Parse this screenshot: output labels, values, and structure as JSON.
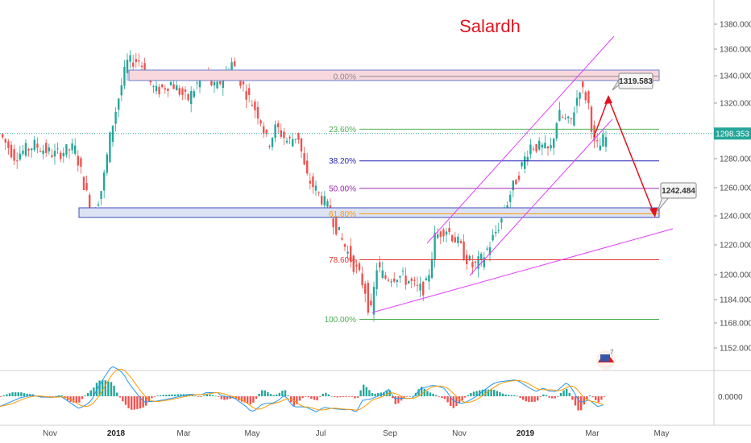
{
  "chart_data": {
    "type": "candlestick",
    "title": "Salardh",
    "price_axis": {
      "ticks": [
        1152,
        1168,
        1184,
        1200,
        1220,
        1240,
        1260,
        1280,
        1300,
        1320,
        1340,
        1360,
        1380
      ],
      "tick_labels": [
        "1152.000",
        "1168.000",
        "1184.000",
        "1200.000",
        "1220.000",
        "1240.000",
        "1260.000",
        "1280.000",
        "1300.000",
        "1320.000",
        "1340.000",
        "1360.000",
        "1380.000"
      ],
      "current_price": 1298.353,
      "current_price_label": "1298.353"
    },
    "oscillator_axis": {
      "zero_label": "0.0000"
    },
    "time_axis": [
      "Nov",
      "2018",
      "Mar",
      "May",
      "Jul",
      "Sep",
      "Nov",
      "2019",
      "Mar",
      "May"
    ],
    "fib_levels": [
      {
        "label": "0.00%",
        "price": 1339.5,
        "color": "#8a8a8a"
      },
      {
        "label": "23.60%",
        "price": 1301.5,
        "color": "#4caf50"
      },
      {
        "label": "38.20%",
        "price": 1278.5,
        "color": "#1f1fb4"
      },
      {
        "label": "50.00%",
        "price": 1259.5,
        "color": "#9c27b0"
      },
      {
        "label": "61.80%",
        "price": 1241.5,
        "color": "#ff9800"
      },
      {
        "label": "78.60%",
        "price": 1210.0,
        "color": "#e53935"
      },
      {
        "label": "100.00%",
        "price": 1170.5,
        "color": "#4caf50"
      }
    ],
    "zones": [
      {
        "name": "resistance",
        "from": 1336.5,
        "to": 1343.0
      },
      {
        "name": "support",
        "from": 1238.5,
        "to": 1244.5
      }
    ],
    "targets": [
      {
        "label": "1319.583",
        "price": 1319.583
      },
      {
        "label": "1242.484",
        "price": 1242.484
      }
    ],
    "legend": null,
    "grid": false
  },
  "colors": {
    "bull": "#26a69a",
    "bear": "#ef5350",
    "title": "#e0141e",
    "trend": "#e040fb",
    "projection": "#e0141e",
    "macd_line": "#2196f3",
    "signal_line": "#ff9800"
  },
  "icons": {
    "logo": "tradingview-flag-icon"
  }
}
